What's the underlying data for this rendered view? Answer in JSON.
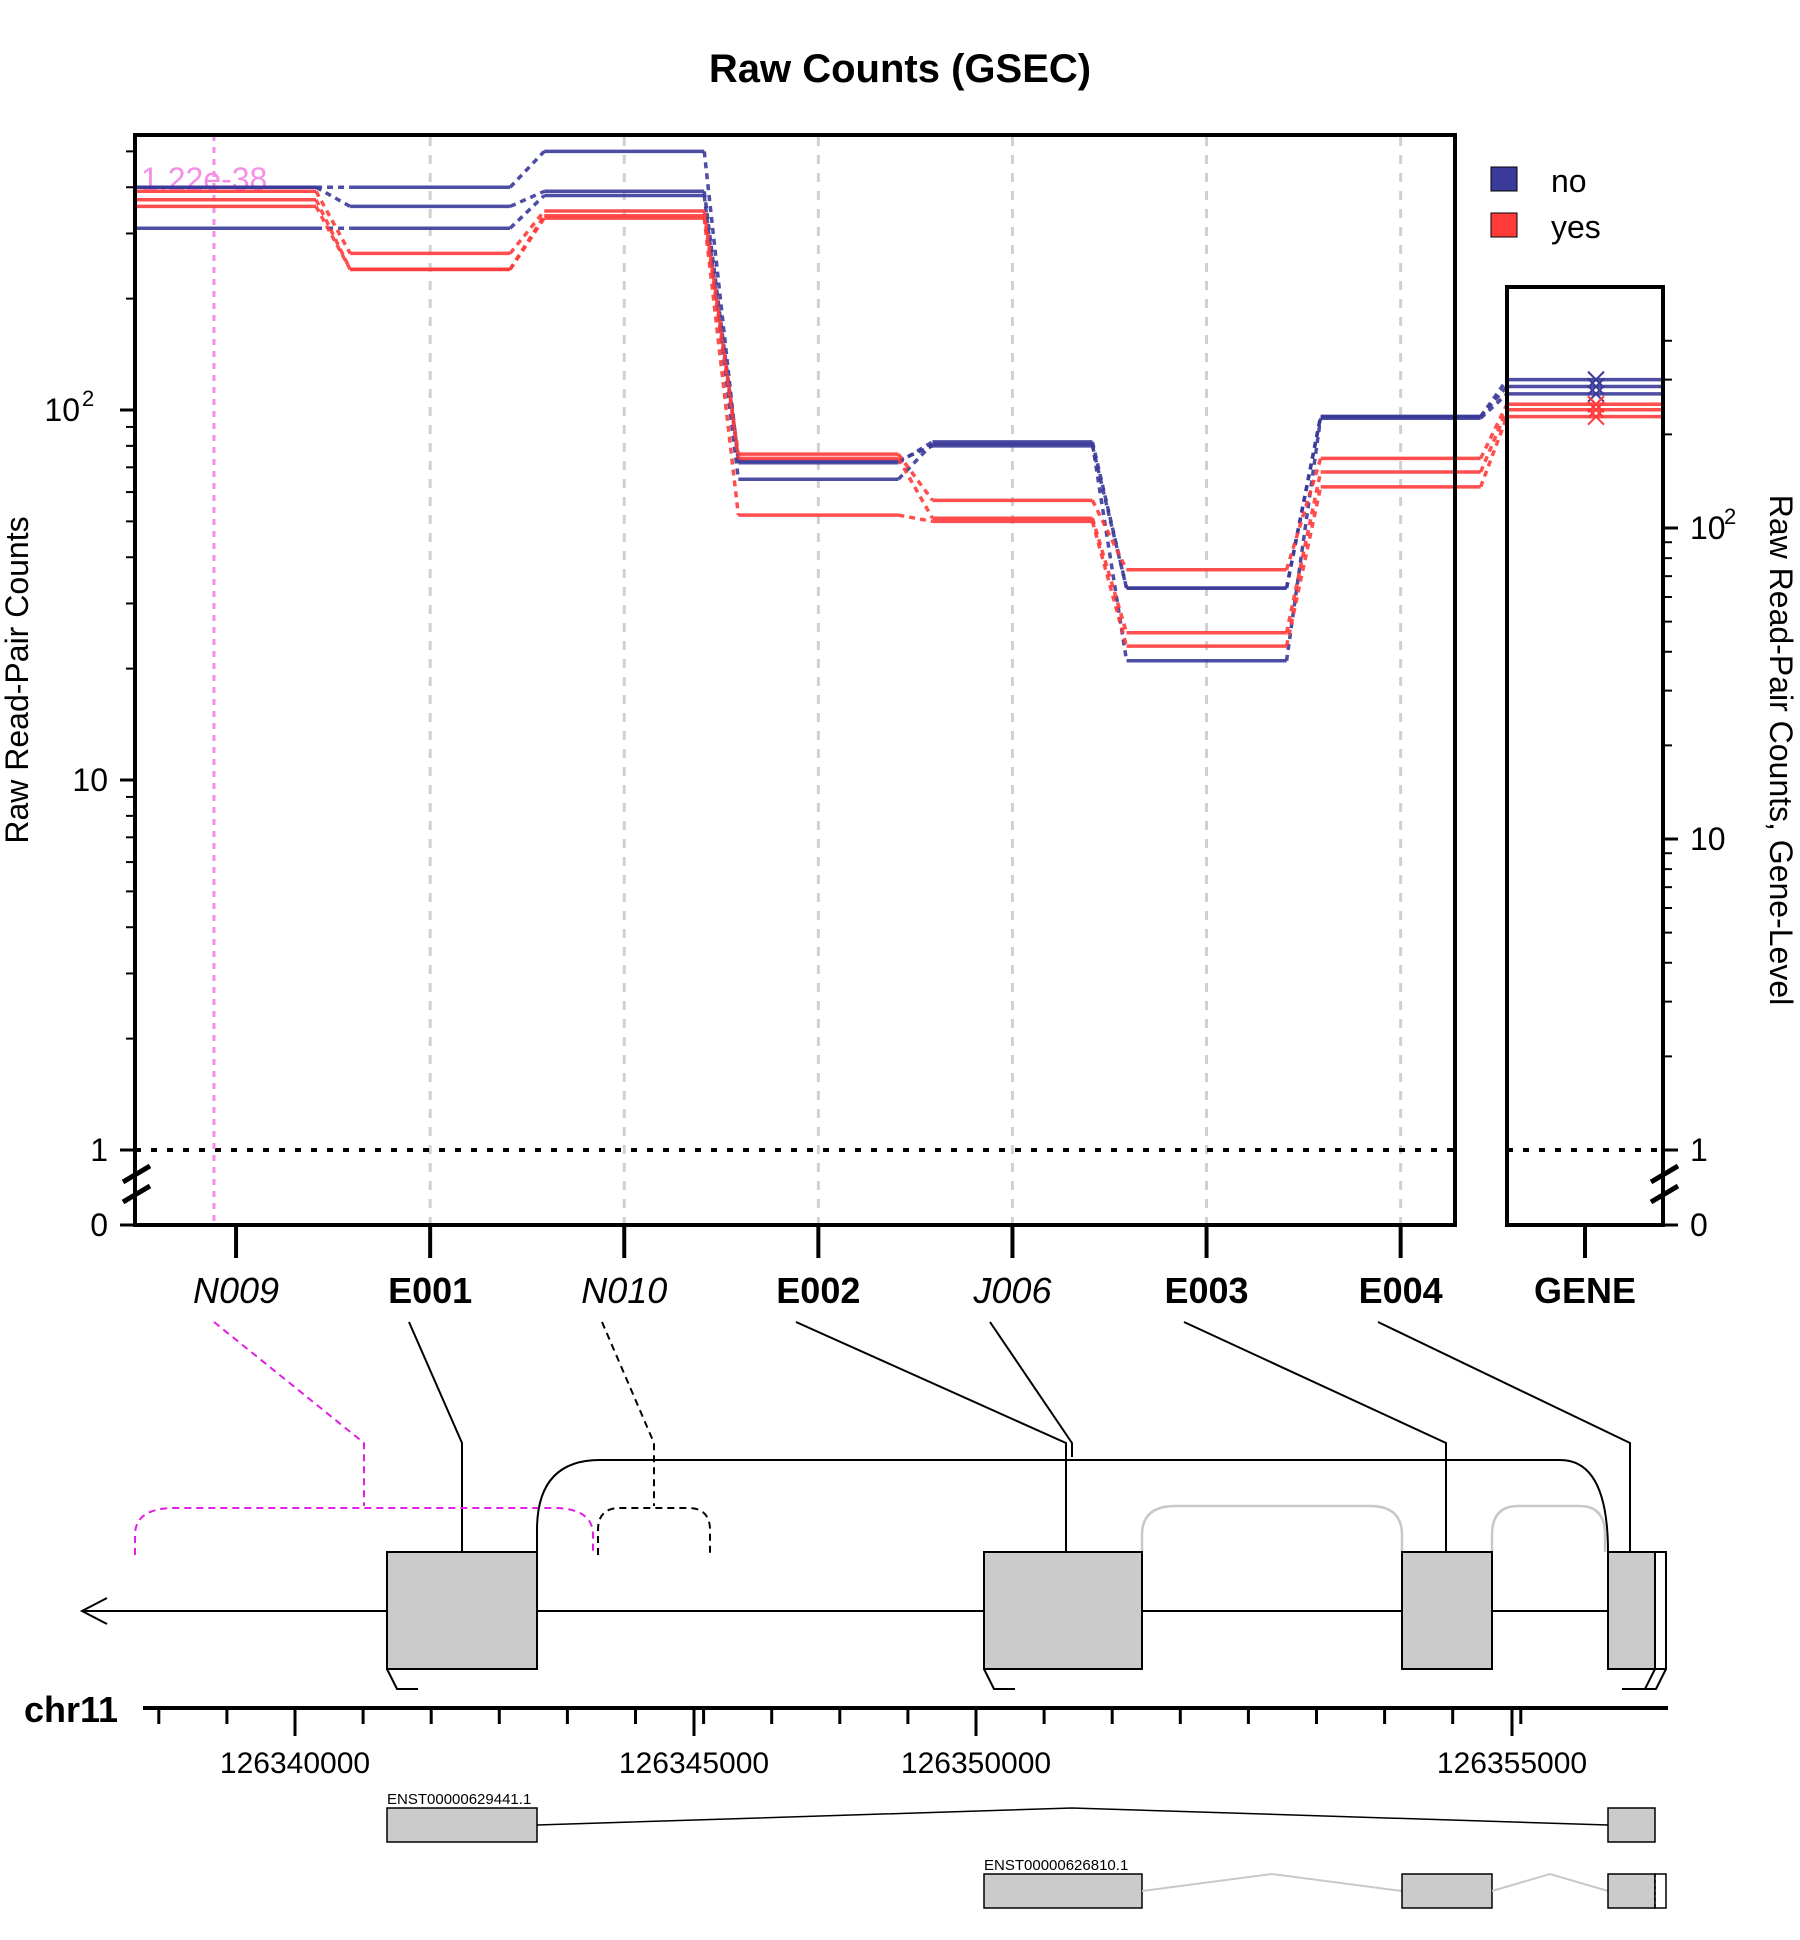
{
  "chart_data": {
    "type": "line",
    "title": "Raw Counts (GSEC)",
    "ylabel": "Raw Read-Pair Counts",
    "ylabel_right": "Raw Read-Pair Counts, Gene-Level",
    "y_scale": "log10 (with 0 break)",
    "ylim": [
      0,
      650
    ],
    "y_ticks_left": [
      {
        "value": 0,
        "label": "0"
      },
      {
        "value": 1,
        "label": "1"
      },
      {
        "value": 10,
        "label": "10"
      },
      {
        "value": 100,
        "label": "10",
        "sup": "2"
      }
    ],
    "gene_ylim": [
      0,
      450
    ],
    "y_ticks_right": [
      {
        "value": 0,
        "label": "0"
      },
      {
        "value": 1,
        "label": "1"
      },
      {
        "value": 10,
        "label": "10"
      },
      {
        "value": 100,
        "label": "10",
        "sup": "2"
      }
    ],
    "features": [
      {
        "id": "N009",
        "kind": "novel"
      },
      {
        "id": "E001",
        "kind": "exon"
      },
      {
        "id": "N010",
        "kind": "novel"
      },
      {
        "id": "E002",
        "kind": "exon"
      },
      {
        "id": "J006",
        "kind": "junction"
      },
      {
        "id": "E003",
        "kind": "exon"
      },
      {
        "id": "E004",
        "kind": "exon"
      }
    ],
    "gene_label": "GENE",
    "annotation": {
      "feature": "N009",
      "text": "1.22e-38",
      "color": "#f08ce0"
    },
    "legend": {
      "position": "top-right",
      "entries": [
        {
          "name": "no",
          "color": "#3a3a99"
        },
        {
          "name": "yes",
          "color": "#ff3b3b"
        }
      ]
    },
    "series": [
      {
        "group": "no",
        "color": "#3a3a99",
        "values": [
          400,
          400,
          500,
          72,
          82,
          33,
          96
        ],
        "gene": 300
      },
      {
        "group": "no",
        "color": "#3a3a99",
        "values": [
          400,
          355,
          390,
          73,
          80,
          33,
          96
        ],
        "gene": 285
      },
      {
        "group": "no",
        "color": "#3a3a99",
        "values": [
          310,
          310,
          380,
          65,
          81,
          21,
          95
        ],
        "gene": 270
      },
      {
        "group": "yes",
        "color": "#ff3b3b",
        "values": [
          390,
          265,
          345,
          76,
          57,
          37,
          74
        ],
        "gene": 250
      },
      {
        "group": "yes",
        "color": "#ff3b3b",
        "values": [
          370,
          240,
          335,
          74,
          51,
          25,
          68
        ],
        "gene": 240
      },
      {
        "group": "yes",
        "color": "#ff3b3b",
        "values": [
          355,
          240,
          330,
          52,
          50,
          23,
          62
        ],
        "gene": 228
      }
    ]
  },
  "genome": {
    "chromosome": "chr11",
    "ticks": [
      "126340000",
      "126345000",
      "126350000",
      "126355000"
    ],
    "transcripts": [
      {
        "name": "ENST00000629441.1"
      },
      {
        "name": "ENST00000626810.1"
      }
    ]
  }
}
